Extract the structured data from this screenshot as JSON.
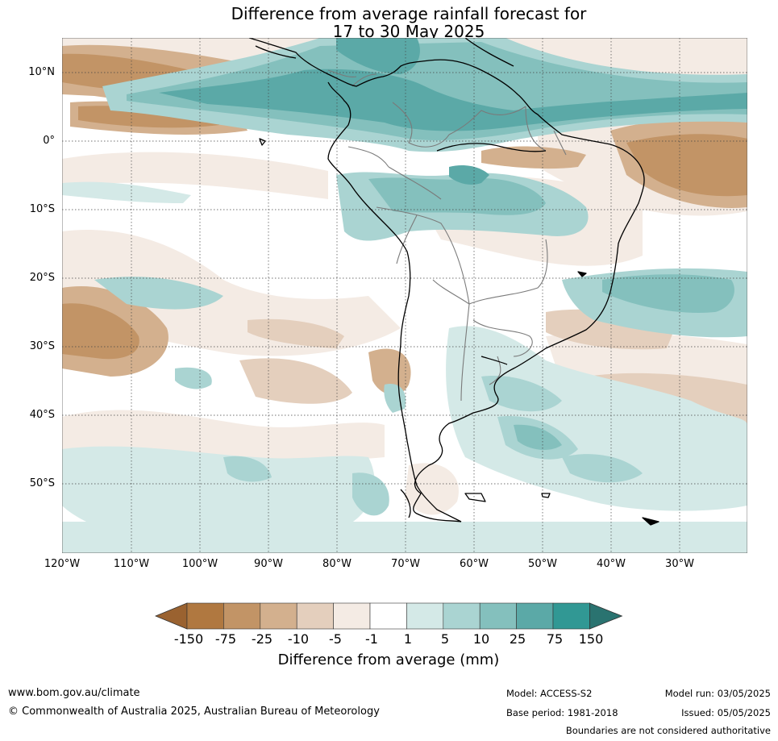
{
  "title": {
    "line1": "Difference from average rainfall forecast for",
    "line2": "17 to 30 May 2025"
  },
  "map": {
    "lat_labels": [
      "10°N",
      "0°",
      "10°S",
      "20°S",
      "30°S",
      "40°S",
      "50°S"
    ],
    "lon_labels": [
      "120°W",
      "110°W",
      "100°W",
      "90°W",
      "80°W",
      "70°W",
      "60°W",
      "50°W",
      "40°W",
      "30°W"
    ]
  },
  "legend": {
    "title": "Difference from average (mm)",
    "ticks": [
      "-150",
      "-75",
      "-25",
      "-10",
      "-5",
      "-1",
      "1",
      "5",
      "10",
      "25",
      "75",
      "150"
    ],
    "colors": [
      "#9a6230",
      "#b07840",
      "#c29466",
      "#d3b08e",
      "#e4cfbd",
      "#f4ebe4",
      "#ffffff",
      "#d4e9e7",
      "#aad4d2",
      "#84c0bd",
      "#5ba9a7",
      "#319894",
      "#2a7370"
    ]
  },
  "footer": {
    "website": "www.bom.gov.au/climate",
    "copyright": "© Commonwealth of Australia 2025, Australian Bureau of Meteorology",
    "model": "Model: ACCESS-S2",
    "base_period": "Base period: 1981-2018",
    "model_run": "Model run: 03/05/2025",
    "issued": "Issued: 05/05/2025",
    "disclaimer": "Boundaries are not considered authoritative"
  }
}
